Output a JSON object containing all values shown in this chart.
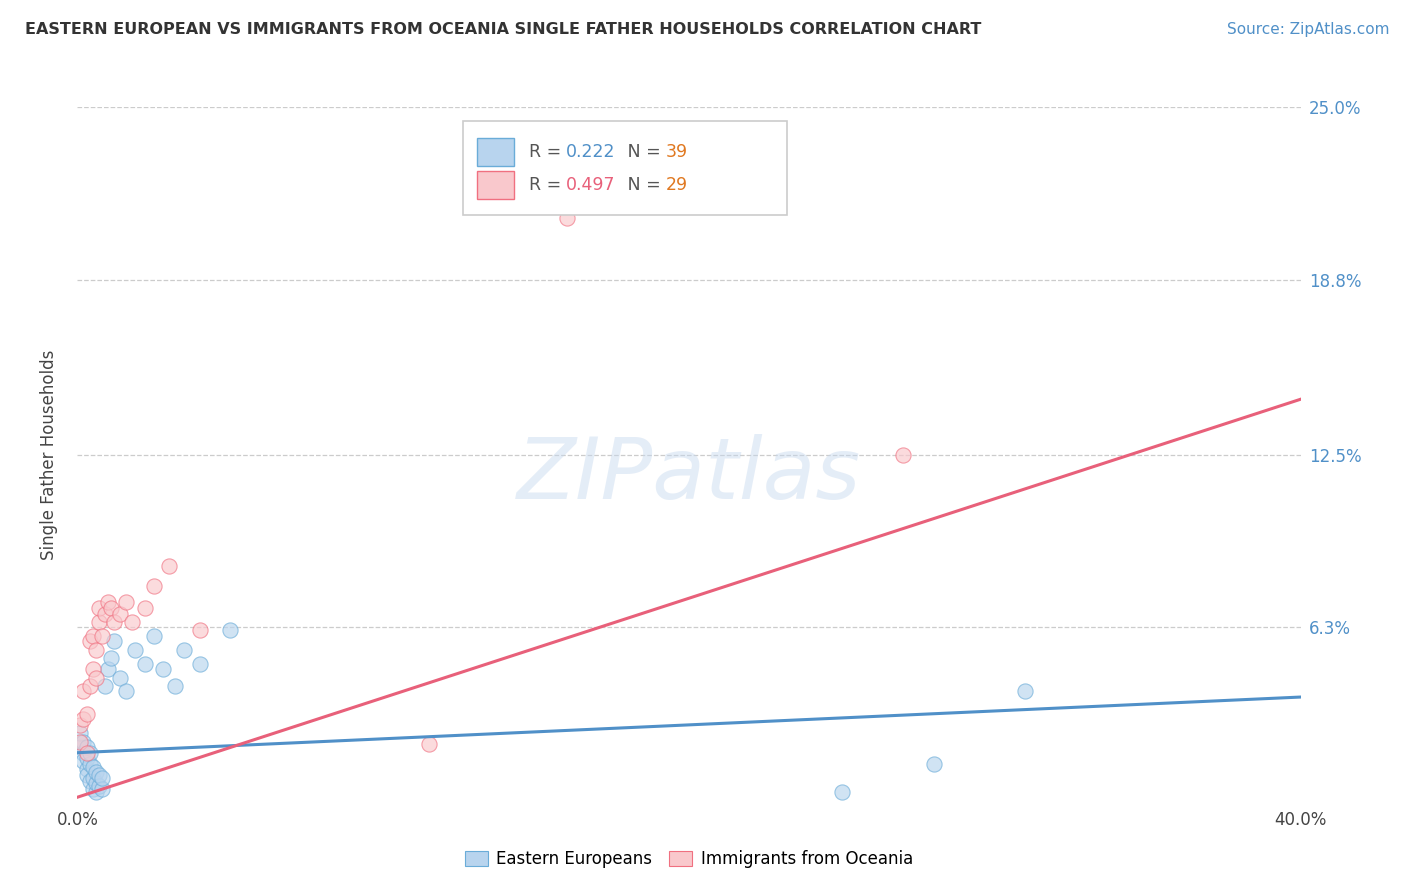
{
  "title": "EASTERN EUROPEAN VS IMMIGRANTS FROM OCEANIA SINGLE FATHER HOUSEHOLDS CORRELATION CHART",
  "source": "Source: ZipAtlas.com",
  "ylabel": "Single Father Households",
  "xlim": [
    0.0,
    0.4
  ],
  "ylim": [
    0.0,
    0.25
  ],
  "background_color": "#ffffff",
  "grid_color": "#cccccc",
  "watermark_text": "ZIPatlas",
  "legend1_r": "0.222",
  "legend1_n": "39",
  "legend2_r": "0.497",
  "legend2_n": "29",
  "series1_fill": "#b8d4ee",
  "series2_fill": "#f9c8cc",
  "series1_edge": "#6aacd8",
  "series2_edge": "#f07080",
  "line1_color": "#5090c8",
  "line2_color": "#e8607a",
  "tick_label_color": "#5090c8",
  "n_label_color": "#e07820",
  "series1_name": "Eastern Europeans",
  "series2_name": "Immigrants from Oceania",
  "ytick_vals": [
    0.0,
    0.063,
    0.125,
    0.188,
    0.25
  ],
  "ytick_labels": [
    "",
    "6.3%",
    "12.5%",
    "18.8%",
    "25.0%"
  ],
  "xtick_vals": [
    0.0,
    0.4
  ],
  "xtick_labels": [
    "0.0%",
    "40.0%"
  ],
  "blue_line_x0": 0.0,
  "blue_line_x1": 0.4,
  "blue_line_y0": 0.018,
  "blue_line_y1": 0.038,
  "pink_line_x0": 0.0,
  "pink_line_x1": 0.4,
  "pink_line_y0": 0.002,
  "pink_line_y1": 0.145,
  "blue_x": [
    0.001,
    0.001,
    0.002,
    0.002,
    0.002,
    0.003,
    0.003,
    0.003,
    0.003,
    0.004,
    0.004,
    0.004,
    0.005,
    0.005,
    0.005,
    0.006,
    0.006,
    0.006,
    0.007,
    0.007,
    0.008,
    0.008,
    0.009,
    0.01,
    0.011,
    0.012,
    0.014,
    0.016,
    0.019,
    0.022,
    0.025,
    0.028,
    0.032,
    0.035,
    0.04,
    0.05,
    0.28,
    0.31,
    0.25
  ],
  "blue_y": [
    0.02,
    0.025,
    0.018,
    0.022,
    0.015,
    0.012,
    0.016,
    0.02,
    0.01,
    0.008,
    0.014,
    0.018,
    0.005,
    0.009,
    0.013,
    0.004,
    0.007,
    0.011,
    0.006,
    0.01,
    0.005,
    0.009,
    0.042,
    0.048,
    0.052,
    0.058,
    0.045,
    0.04,
    0.055,
    0.05,
    0.06,
    0.048,
    0.042,
    0.055,
    0.05,
    0.062,
    0.014,
    0.04,
    0.004
  ],
  "pink_x": [
    0.001,
    0.001,
    0.002,
    0.002,
    0.003,
    0.003,
    0.004,
    0.004,
    0.005,
    0.005,
    0.006,
    0.006,
    0.007,
    0.007,
    0.008,
    0.009,
    0.01,
    0.011,
    0.012,
    0.014,
    0.016,
    0.018,
    0.022,
    0.025,
    0.03,
    0.04,
    0.27,
    0.115,
    0.16
  ],
  "pink_y": [
    0.022,
    0.028,
    0.03,
    0.04,
    0.018,
    0.032,
    0.042,
    0.058,
    0.048,
    0.06,
    0.045,
    0.055,
    0.065,
    0.07,
    0.06,
    0.068,
    0.072,
    0.07,
    0.065,
    0.068,
    0.072,
    0.065,
    0.07,
    0.078,
    0.085,
    0.062,
    0.125,
    0.021,
    0.21
  ]
}
